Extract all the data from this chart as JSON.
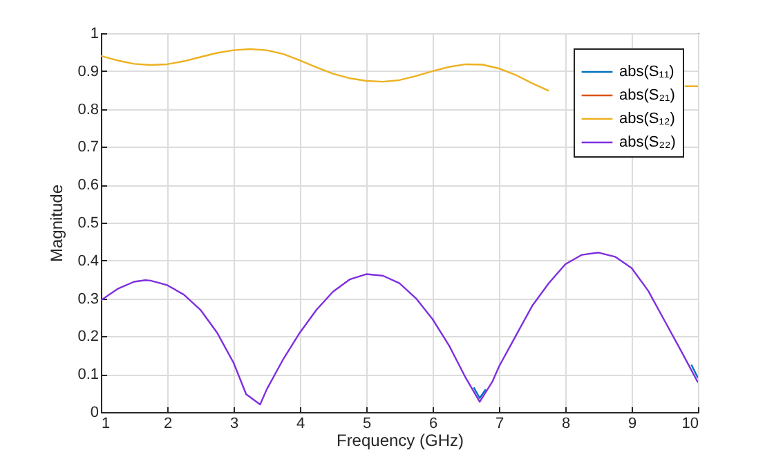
{
  "chart_data": {
    "type": "line",
    "xlabel": "Frequency (GHz)",
    "ylabel": "Magnitude",
    "xlim": [
      1,
      10
    ],
    "xticks": [
      1,
      2,
      3,
      4,
      5,
      6,
      7,
      8,
      9,
      10
    ],
    "ylim": [
      0,
      1
    ],
    "yticks": [
      0,
      0.1,
      0.2,
      0.3,
      0.4,
      0.5,
      0.6,
      0.7,
      0.8,
      0.9,
      1
    ],
    "grid": true,
    "legend": "top right",
    "series": [
      {
        "name": "abs(S₁₁)",
        "color": "#0072bd",
        "x": [
          6.62,
          6.71,
          6.8,
          8,
          9.9,
          10
        ],
        "values": [
          0.065,
          0.037,
          0.06,
          null,
          0.125,
          0.09
        ]
      },
      {
        "name": "abs(S₂₁)",
        "color": "#d95319",
        "values": [
          null
        ]
      },
      {
        "name": "abs(S₁₂)",
        "color": "#edb120",
        "x": [
          1,
          1.25,
          1.5,
          1.75,
          2,
          2.25,
          2.5,
          2.75,
          3,
          3.25,
          3.5,
          3.75,
          4,
          4.25,
          4.5,
          4.75,
          5,
          5.25,
          5.5,
          5.75,
          6,
          6.25,
          6.5,
          6.75,
          7,
          7.25,
          7.5,
          7.75,
          9,
          9.8,
          10
        ],
        "values": [
          0.94,
          0.928,
          0.919,
          0.916,
          0.918,
          0.926,
          0.937,
          0.948,
          0.955,
          0.958,
          0.955,
          0.945,
          0.928,
          0.91,
          0.893,
          0.881,
          0.874,
          0.872,
          0.876,
          0.887,
          0.9,
          0.911,
          0.918,
          0.917,
          0.907,
          0.89,
          0.868,
          0.848,
          null,
          0.86,
          0.86
        ]
      },
      {
        "name": "abs(S₂₂)",
        "color": "#7e2fdf",
        "x": [
          1,
          1.25,
          1.5,
          1.67,
          1.75,
          2,
          2.25,
          2.5,
          2.75,
          3,
          3.19,
          3.4,
          3.5,
          3.75,
          4,
          4.25,
          4.5,
          4.75,
          5,
          5.25,
          5.5,
          5.75,
          6,
          6.25,
          6.5,
          6.71,
          6.9,
          7,
          7.25,
          7.5,
          7.75,
          8,
          8.25,
          8.5,
          8.75,
          9,
          9.25,
          9.5,
          9.75,
          10
        ],
        "values": [
          0.295,
          0.325,
          0.344,
          0.348,
          0.347,
          0.335,
          0.31,
          0.27,
          0.21,
          0.13,
          0.047,
          0.02,
          0.06,
          0.14,
          0.21,
          0.27,
          0.318,
          0.35,
          0.364,
          0.36,
          0.34,
          0.3,
          0.245,
          0.175,
          0.09,
          0.027,
          0.08,
          0.12,
          0.2,
          0.28,
          0.34,
          0.39,
          0.415,
          0.421,
          0.41,
          0.38,
          0.32,
          0.24,
          0.16,
          0.078
        ]
      }
    ]
  }
}
